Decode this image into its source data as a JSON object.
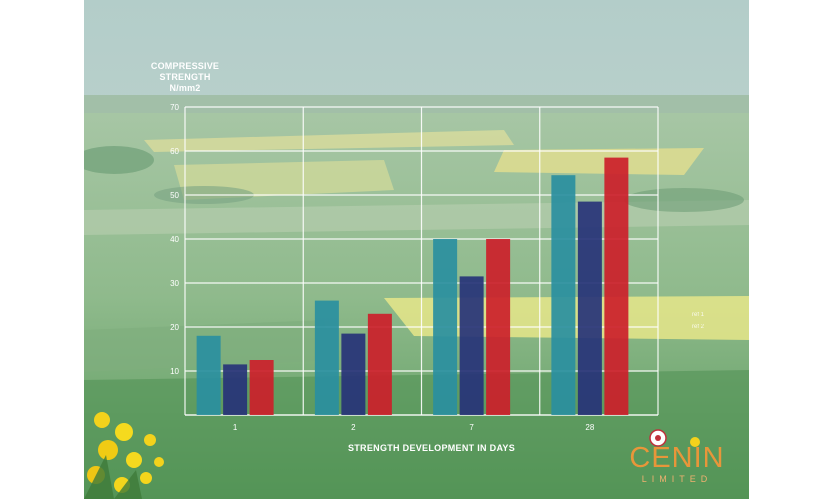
{
  "chart_data": {
    "type": "bar",
    "ylabel_lines": [
      "COMPRESSIVE",
      "STRENGTH",
      "N/mm2"
    ],
    "xlabel": "STRENGTH DEVELOPMENT IN DAYS",
    "categories": [
      "1",
      "2",
      "7",
      "28"
    ],
    "ylim": [
      0,
      70
    ],
    "yticks": [
      "10",
      "20",
      "30",
      "40",
      "50",
      "60",
      "70"
    ],
    "grid": true,
    "legend_position": "right",
    "series": [
      {
        "name": "ref 1",
        "color": "#2a8fa0",
        "values": [
          18,
          26,
          40,
          54.5
        ]
      },
      {
        "name": "",
        "color": "#273378",
        "values": [
          11.5,
          18.5,
          31.5,
          48.5
        ]
      },
      {
        "name": "ref 2",
        "color": "#cc1f2a",
        "values": [
          12.5,
          23,
          40,
          58.5
        ]
      }
    ]
  },
  "branding": {
    "logo_text": "CENIN",
    "logo_subtext": "LIMITED"
  }
}
